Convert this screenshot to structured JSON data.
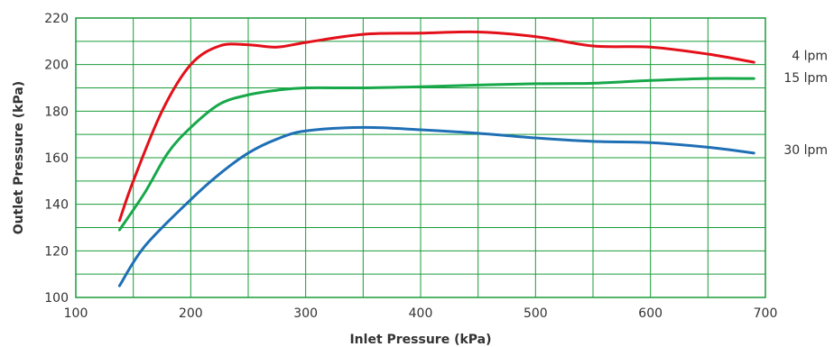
{
  "chart_data": {
    "type": "line",
    "xlabel": "Inlet Pressure (kPa)",
    "ylabel": "Outlet Pressure (kPa)",
    "xlim": [
      100,
      700
    ],
    "ylim": [
      100,
      220
    ],
    "x_major_ticks": [
      100,
      200,
      300,
      400,
      500,
      600,
      700
    ],
    "x_minor_step": 50,
    "y_major_ticks": [
      100,
      120,
      140,
      160,
      180,
      200,
      220
    ],
    "y_minor_step": 10,
    "grid": true,
    "grid_color": "#1a9c3a",
    "series": [
      {
        "name": "4 lpm",
        "color": "#e3101a",
        "points": [
          [
            138,
            133
          ],
          [
            150,
            150
          ],
          [
            175,
            180
          ],
          [
            200,
            200
          ],
          [
            225,
            208
          ],
          [
            250,
            208.5
          ],
          [
            275,
            207.5
          ],
          [
            300,
            209.5
          ],
          [
            350,
            213
          ],
          [
            400,
            213.5
          ],
          [
            450,
            214
          ],
          [
            500,
            212
          ],
          [
            550,
            208
          ],
          [
            600,
            207.5
          ],
          [
            650,
            204.5
          ],
          [
            690,
            201
          ]
        ]
      },
      {
        "name": "15 lpm",
        "color": "#17a84a",
        "points": [
          [
            138,
            129
          ],
          [
            160,
            145
          ],
          [
            180,
            162
          ],
          [
            200,
            173
          ],
          [
            225,
            183
          ],
          [
            250,
            187
          ],
          [
            275,
            189
          ],
          [
            300,
            190
          ],
          [
            350,
            190
          ],
          [
            400,
            190.5
          ],
          [
            450,
            191.2
          ],
          [
            500,
            191.8
          ],
          [
            550,
            192
          ],
          [
            600,
            193.2
          ],
          [
            650,
            194
          ],
          [
            690,
            194
          ]
        ]
      },
      {
        "name": "30 lpm",
        "color": "#1f6fb5",
        "points": [
          [
            138,
            105
          ],
          [
            160,
            122
          ],
          [
            200,
            142
          ],
          [
            225,
            153
          ],
          [
            250,
            162
          ],
          [
            275,
            168
          ],
          [
            300,
            171.5
          ],
          [
            350,
            173
          ],
          [
            400,
            172
          ],
          [
            450,
            170.5
          ],
          [
            500,
            168.5
          ],
          [
            550,
            167
          ],
          [
            600,
            166.5
          ],
          [
            650,
            164.5
          ],
          [
            690,
            162
          ]
        ]
      }
    ]
  }
}
